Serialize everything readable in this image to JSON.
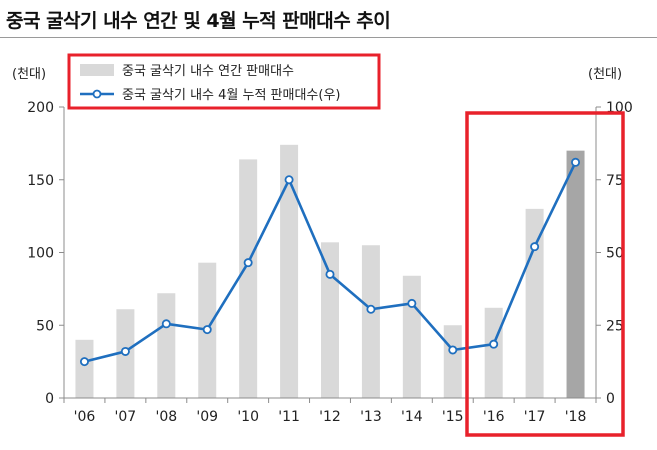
{
  "chart_data": {
    "type": "bar+line",
    "title": "중국 굴삭기 내수 연간 및 4월 누적 판매대수 추이",
    "categories": [
      "'06",
      "'07",
      "'08",
      "'09",
      "'10",
      "'11",
      "'12",
      "'13",
      "'14",
      "'15",
      "'16",
      "'17",
      "'18"
    ],
    "series": [
      {
        "name": "중국 굴삭기 내수 연간 판매대수",
        "type": "bar",
        "axis": "left",
        "values": [
          40,
          61,
          72,
          93,
          164,
          174,
          107,
          105,
          84,
          50,
          62,
          130,
          170
        ],
        "color": "#d9d9d9",
        "highlight_color": "#a6a6a6",
        "highlight_index": 12
      },
      {
        "name": "중국 굴삭기 내수 4월 누적 판매대수(우)",
        "type": "line",
        "axis": "right",
        "values": [
          12.5,
          16,
          25.5,
          23.5,
          46.5,
          75,
          42.5,
          30.5,
          32.5,
          16.5,
          18.5,
          52,
          81
        ],
        "color": "#1f6fbf"
      }
    ],
    "left_axis": {
      "unit": "(천대)",
      "ylim": [
        0,
        200
      ],
      "ticks": [
        0,
        50,
        100,
        150,
        200
      ]
    },
    "right_axis": {
      "unit": "(천대)",
      "ylim": [
        0,
        100
      ],
      "ticks": [
        0,
        25,
        50,
        75,
        100
      ]
    },
    "annotation_color": "#e8212b",
    "legend_position": "top-left"
  }
}
